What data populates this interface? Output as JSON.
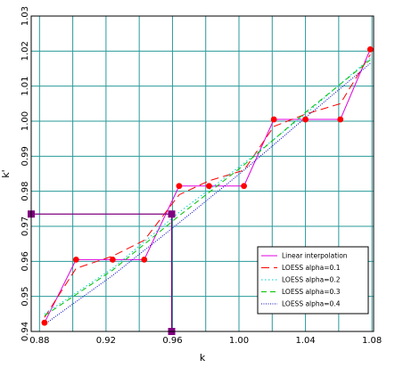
{
  "chart_data": {
    "type": "line",
    "xlabel": "k",
    "ylabel": "k'",
    "xlim": [
      0.875,
      1.081
    ],
    "ylim": [
      0.94,
      1.03
    ],
    "x_ticks": [
      "0.88",
      "0.92",
      "0.96",
      "1.00",
      "1.04",
      "1.08"
    ],
    "x_tick_values": [
      0.88,
      0.92,
      0.96,
      1.0,
      1.04,
      1.08
    ],
    "x_minor_ticks": [
      0.9,
      0.94,
      0.98,
      1.02,
      1.06
    ],
    "y_ticks": [
      "0.94",
      "0.95",
      "0.96",
      "0.97",
      "0.98",
      "0.99",
      "1.00",
      "1.01",
      "1.02",
      "1.03"
    ],
    "y_tick_values": [
      0.94,
      0.95,
      0.96,
      0.97,
      0.98,
      0.99,
      1.0,
      1.01,
      1.02,
      1.03
    ],
    "grid": true,
    "legend_position": "bottom-right",
    "colors": {
      "grid": "#2a9a9a",
      "points": "#ff0000",
      "highlight": "#800080"
    },
    "points": {
      "x": [
        0.883,
        0.902,
        0.924,
        0.943,
        0.964,
        0.982,
        1.003,
        1.021,
        1.04,
        1.061,
        1.079
      ],
      "y": [
        0.9425,
        0.9605,
        0.9605,
        0.9605,
        0.9815,
        0.9815,
        0.9815,
        1.0005,
        1.0005,
        1.0005,
        1.0205
      ]
    },
    "highlight": {
      "x": 0.9595,
      "y": 0.9735
    },
    "series": [
      {
        "name": "Linear interpolation",
        "color": "#e000e0",
        "dash": "solid",
        "x": [
          0.883,
          0.902,
          0.924,
          0.943,
          0.964,
          0.982,
          1.003,
          1.021,
          1.04,
          1.061,
          1.079
        ],
        "y": [
          0.9425,
          0.9605,
          0.9605,
          0.9605,
          0.9815,
          0.9815,
          0.9815,
          1.0005,
          1.0005,
          1.0005,
          1.0205
        ]
      },
      {
        "name": "LOESS alpha=0.1",
        "color": "#ff0000",
        "dash": "long",
        "x": [
          0.883,
          0.902,
          0.924,
          0.943,
          0.964,
          0.982,
          1.003,
          1.021,
          1.04,
          1.061,
          1.079
        ],
        "y": [
          0.944,
          0.958,
          0.9615,
          0.966,
          0.979,
          0.983,
          0.986,
          0.9985,
          1.002,
          1.005,
          1.019
        ]
      },
      {
        "name": "LOESS alpha=0.2",
        "color": "#00d0d0",
        "dash": "dot",
        "x": [
          0.883,
          0.924,
          0.964,
          1.003,
          1.04,
          1.079
        ],
        "y": [
          0.945,
          0.958,
          0.974,
          0.988,
          1.002,
          1.018
        ]
      },
      {
        "name": "LOESS alpha=0.3",
        "color": "#00c000",
        "dash": "medium",
        "x": [
          0.883,
          0.924,
          0.964,
          1.003,
          1.04,
          1.079
        ],
        "y": [
          0.9445,
          0.9575,
          0.973,
          0.9875,
          1.0025,
          1.0175
        ]
      },
      {
        "name": "LOESS alpha=0.4",
        "color": "#0000c0",
        "dash": "fine",
        "x": [
          0.883,
          0.924,
          0.964,
          1.003,
          1.04,
          1.079
        ],
        "y": [
          0.942,
          0.956,
          0.971,
          0.986,
          1.001,
          1.0165
        ]
      }
    ]
  },
  "legend": {
    "items": [
      "Linear interpolation",
      "LOESS alpha=0.1",
      "LOESS alpha=0.2",
      "LOESS alpha=0.3",
      "LOESS alpha=0.4"
    ]
  }
}
